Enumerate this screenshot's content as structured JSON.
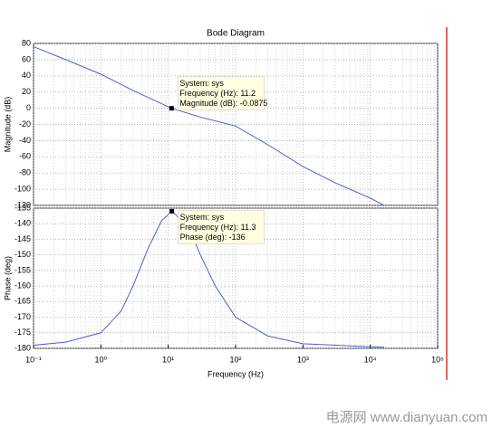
{
  "chart_data": [
    {
      "type": "line",
      "title": "Bode Diagram",
      "ylabel": "Magnitude (dB)",
      "xscale": "log",
      "grid": true,
      "xlim": [
        0.1,
        100000
      ],
      "ylim": [
        -120,
        80
      ],
      "yticks": [
        -120,
        -100,
        -80,
        -60,
        -40,
        -20,
        0,
        20,
        40,
        60,
        80
      ],
      "series": [
        {
          "name": "sys",
          "color": "#4a5fd0",
          "x": [
            0.1,
            0.3,
            1,
            3,
            11.2,
            30,
            100,
            300,
            1000,
            3000,
            10000,
            16000
          ],
          "values": [
            76,
            60,
            42,
            22,
            -0.0875,
            -11,
            -22,
            -45,
            -72,
            -92,
            -111,
            -120
          ]
        }
      ],
      "datatip": {
        "x": 11.2,
        "y": -0.0875,
        "lines": [
          "System: sys",
          "Frequency (Hz): 11.2",
          "Magnitude (dB): -0.0875"
        ]
      }
    },
    {
      "type": "line",
      "ylabel": "Phase (deg)",
      "xlabel": "Frequency  (Hz)",
      "xscale": "log",
      "grid": true,
      "xlim": [
        0.1,
        100000
      ],
      "xticks": [
        {
          "value": 0.1,
          "label": "10⁻¹"
        },
        {
          "value": 1,
          "label": "10⁰"
        },
        {
          "value": 10,
          "label": "10¹"
        },
        {
          "value": 100,
          "label": "10²"
        },
        {
          "value": 1000,
          "label": "10³"
        },
        {
          "value": 10000,
          "label": "10⁴"
        },
        {
          "value": 100000,
          "label": "10⁵"
        }
      ],
      "ylim": [
        -180,
        -135
      ],
      "yticks": [
        -180,
        -175,
        -170,
        -165,
        -160,
        -155,
        -150,
        -145,
        -140,
        -135
      ],
      "series": [
        {
          "name": "sys",
          "color": "#4a5fd0",
          "x": [
            0.1,
            0.3,
            1,
            2,
            3,
            5,
            8,
            11.3,
            20,
            30,
            50,
            100,
            300,
            1000,
            10000,
            16000
          ],
          "values": [
            -179,
            -178,
            -175,
            -168,
            -160,
            -148,
            -139,
            -136,
            -141,
            -150,
            -160,
            -170,
            -176,
            -178.5,
            -179.5,
            -179.6
          ]
        }
      ],
      "datatip": {
        "x": 11.3,
        "y": -136,
        "lines": [
          "System: sys",
          "Frequency (Hz): 11.3",
          "Phase (deg): -136"
        ]
      }
    }
  ],
  "watermark": "电源网 www.dianyuan.com"
}
